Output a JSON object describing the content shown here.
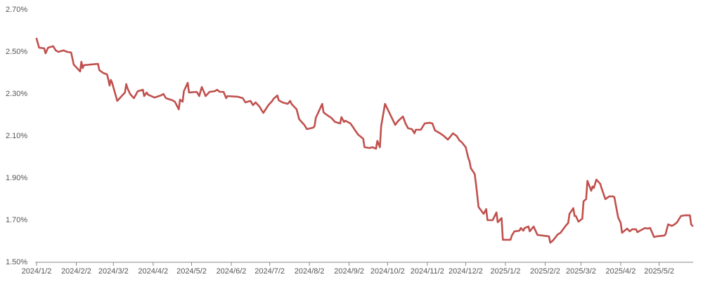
{
  "chart_data": {
    "type": "line",
    "color": "#c0504d",
    "x": [
      "2024/1/2",
      "2024/1/4",
      "2024/1/8",
      "2024/1/9",
      "2024/1/11",
      "2024/1/15",
      "2024/1/17",
      "2024/1/19",
      "2024/1/23",
      "2024/1/26",
      "2024/1/29",
      "2024/1/31",
      "2024/2/5",
      "2024/2/6",
      "2024/2/7",
      "2024/2/8",
      "2024/2/19",
      "2024/2/20",
      "2024/2/23",
      "2024/2/26",
      "2024/2/27",
      "2024/2/28",
      "2024/2/29",
      "2024/3/1",
      "2024/3/5",
      "2024/3/8",
      "2024/3/11",
      "2024/3/12",
      "2024/3/13",
      "2024/3/15",
      "2024/3/18",
      "2024/3/21",
      "2024/3/25",
      "2024/3/26",
      "2024/3/28",
      "2024/3/29",
      "2024/4/3",
      "2024/4/8",
      "2024/4/10",
      "2024/4/12",
      "2024/4/17",
      "2024/4/19",
      "2024/4/22",
      "2024/4/23",
      "2024/4/25",
      "2024/4/26",
      "2024/4/29",
      "2024/4/30",
      "2024/5/6",
      "2024/5/8",
      "2024/5/9",
      "2024/5/10",
      "2024/5/13",
      "2024/5/16",
      "2024/5/20",
      "2024/5/22",
      "2024/5/24",
      "2024/5/27",
      "2024/5/29",
      "2024/5/30",
      "2024/6/7",
      "2024/6/11",
      "2024/6/13",
      "2024/6/17",
      "2024/6/19",
      "2024/6/21",
      "2024/6/24",
      "2024/6/27",
      "2024/7/1",
      "2024/7/4",
      "2024/7/5",
      "2024/7/8",
      "2024/7/9",
      "2024/7/12",
      "2024/7/16",
      "2024/7/18",
      "2024/7/19",
      "2024/7/23",
      "2024/7/25",
      "2024/7/29",
      "2024/7/31",
      "2024/8/5",
      "2024/8/6",
      "2024/8/7",
      "2024/8/9",
      "2024/8/12",
      "2024/8/13",
      "2024/8/15",
      "2024/8/19",
      "2024/8/22",
      "2024/8/26",
      "2024/8/27",
      "2024/8/29",
      "2024/8/30",
      "2024/9/3",
      "2024/9/5",
      "2024/9/6",
      "2024/9/9",
      "2024/9/13",
      "2024/9/14",
      "2024/9/18",
      "2024/9/20",
      "2024/9/23",
      "2024/9/24",
      "2024/9/26",
      "2024/9/27",
      "2024/9/30",
      "2024/10/8",
      "2024/10/10",
      "2024/10/14",
      "2024/10/16",
      "2024/10/18",
      "2024/10/21",
      "2024/10/23",
      "2024/10/24",
      "2024/10/28",
      "2024/10/31",
      "2024/11/4",
      "2024/11/6",
      "2024/11/8",
      "2024/11/12",
      "2024/11/15",
      "2024/11/18",
      "2024/11/20",
      "2024/11/22",
      "2024/11/25",
      "2024/11/27",
      "2024/11/29",
      "2024/12/2",
      "2024/12/4",
      "2024/12/5",
      "2024/12/6",
      "2024/12/9",
      "2024/12/10",
      "2024/12/11",
      "2024/12/12",
      "2024/12/16",
      "2024/12/18",
      "2024/12/19",
      "2024/12/23",
      "2024/12/26",
      "2024/12/27",
      "2024/12/30",
      "2024/12/31",
      "2025/1/6",
      "2025/1/7",
      "2025/1/9",
      "2025/1/13",
      "2025/1/14",
      "2025/1/16",
      "2025/1/17",
      "2025/1/20",
      "2025/1/21",
      "2025/1/24",
      "2025/1/27",
      "2025/2/5",
      "2025/2/6",
      "2025/2/8",
      "2025/2/12",
      "2025/2/14",
      "2025/2/18",
      "2025/2/20",
      "2025/2/21",
      "2025/2/24",
      "2025/2/25",
      "2025/2/26",
      "2025/2/28",
      "2025/3/3",
      "2025/3/4",
      "2025/3/6",
      "2025/3/7",
      "2025/3/10",
      "2025/3/11",
      "2025/3/12",
      "2025/3/14",
      "2025/3/17",
      "2025/3/18",
      "2025/3/21",
      "2025/3/24",
      "2025/3/27",
      "2025/3/28",
      "2025/3/31",
      "2025/4/2",
      "2025/4/3",
      "2025/4/7",
      "2025/4/9",
      "2025/4/11",
      "2025/4/14",
      "2025/4/15",
      "2025/4/17",
      "2025/4/21",
      "2025/4/23",
      "2025/4/25",
      "2025/4/28",
      "2025/4/30",
      "2025/5/6",
      "2025/5/7",
      "2025/5/8",
      "2025/5/9",
      "2025/5/12",
      "2025/5/14",
      "2025/5/16",
      "2025/5/19",
      "2025/5/22",
      "2025/5/26",
      "2025/5/27",
      "2025/5/28"
    ],
    "values": [
      2.563,
      2.52,
      2.517,
      2.493,
      2.52,
      2.527,
      2.507,
      2.5,
      2.507,
      2.5,
      2.497,
      2.44,
      2.407,
      2.453,
      2.423,
      2.437,
      2.443,
      2.413,
      2.4,
      2.393,
      2.37,
      2.34,
      2.367,
      2.353,
      2.267,
      2.287,
      2.307,
      2.347,
      2.327,
      2.3,
      2.28,
      2.313,
      2.32,
      2.29,
      2.307,
      2.297,
      2.283,
      2.293,
      2.3,
      2.28,
      2.27,
      2.263,
      2.227,
      2.273,
      2.263,
      2.313,
      2.353,
      2.307,
      2.31,
      2.29,
      2.313,
      2.333,
      2.29,
      2.31,
      2.313,
      2.32,
      2.31,
      2.31,
      2.28,
      2.29,
      2.287,
      2.28,
      2.26,
      2.267,
      2.247,
      2.26,
      2.24,
      2.21,
      2.247,
      2.267,
      2.277,
      2.293,
      2.27,
      2.26,
      2.253,
      2.267,
      2.253,
      2.227,
      2.18,
      2.153,
      2.133,
      2.14,
      2.147,
      2.187,
      2.213,
      2.253,
      2.213,
      2.203,
      2.187,
      2.167,
      2.16,
      2.19,
      2.167,
      2.173,
      2.16,
      2.143,
      2.133,
      2.107,
      2.087,
      2.047,
      2.043,
      2.047,
      2.04,
      2.077,
      2.047,
      2.147,
      2.253,
      2.153,
      2.17,
      2.193,
      2.16,
      2.137,
      2.133,
      2.113,
      2.13,
      2.13,
      2.16,
      2.163,
      2.16,
      2.127,
      2.113,
      2.1,
      2.083,
      2.097,
      2.113,
      2.1,
      2.08,
      2.07,
      2.047,
      1.997,
      1.98,
      1.947,
      1.92,
      1.873,
      1.82,
      1.763,
      1.73,
      1.753,
      1.7,
      1.7,
      1.737,
      1.69,
      1.71,
      1.607,
      1.607,
      1.627,
      1.647,
      1.65,
      1.663,
      1.65,
      1.663,
      1.67,
      1.647,
      1.67,
      1.63,
      1.623,
      1.593,
      1.603,
      1.633,
      1.64,
      1.673,
      1.687,
      1.73,
      1.757,
      1.72,
      1.72,
      1.693,
      1.707,
      1.79,
      1.8,
      1.887,
      1.84,
      1.86,
      1.853,
      1.893,
      1.873,
      1.853,
      1.8,
      1.813,
      1.813,
      1.81,
      1.713,
      1.687,
      1.64,
      1.66,
      1.647,
      1.657,
      1.657,
      1.643,
      1.65,
      1.663,
      1.66,
      1.663,
      1.62,
      1.623,
      1.627,
      1.633,
      1.657,
      1.68,
      1.673,
      1.68,
      1.69,
      1.72,
      1.723,
      1.723,
      1.68,
      1.673
    ],
    "xlim": [
      "2024/1/2",
      "2025/5/28"
    ],
    "xticks": [
      "2024/1/2",
      "2024/2/2",
      "2024/3/2",
      "2024/4/2",
      "2024/5/2",
      "2024/6/2",
      "2024/7/2",
      "2024/8/2",
      "2024/9/2",
      "2024/10/2",
      "2024/11/2",
      "2024/12/2",
      "2025/1/2",
      "2025/2/2",
      "2025/3/2",
      "2025/4/2",
      "2025/5/2"
    ],
    "ylim": [
      1.5,
      2.7
    ],
    "yticks": [
      {
        "value": 1.5,
        "label": "1.50%"
      },
      {
        "value": 1.7,
        "label": "1.70%"
      },
      {
        "value": 1.9,
        "label": "1.90%"
      },
      {
        "value": 2.1,
        "label": "2.10%"
      },
      {
        "value": 2.3,
        "label": "2.30%"
      },
      {
        "value": 2.5,
        "label": "2.50%"
      },
      {
        "value": 2.7,
        "label": "2.70%"
      }
    ]
  }
}
